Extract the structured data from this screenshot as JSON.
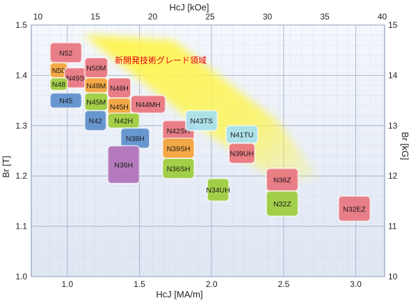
{
  "chart_data": {
    "type": "scatter",
    "title": "",
    "annotation": "新開発技術グレード領域",
    "xlabel_bottom": "HcJ [MA/m]",
    "xlabel_top": "HcJ [kOe]",
    "ylabel_left": "Br [T]",
    "ylabel_right": "Br [kG]",
    "x_range": [
      0.75,
      3.2
    ],
    "y_range": [
      1.0,
      1.5
    ],
    "x_ticks_bottom": [
      1.0,
      1.5,
      2.0,
      2.5,
      3.0
    ],
    "x_tick_labels_bottom": [
      "1.0",
      "1.5",
      "2.0",
      "2.5",
      "3.0"
    ],
    "x_ticks_top_koe": [
      10,
      15,
      20,
      25,
      30,
      35,
      40
    ],
    "x_tick_labels_top": [
      "10",
      "15",
      "20",
      "25",
      "30",
      "35",
      "40"
    ],
    "y_ticks_left": [
      1.0,
      1.1,
      1.2,
      1.3,
      1.4,
      1.5
    ],
    "y_tick_labels_left": [
      "1.0",
      "1.1",
      "1.2",
      "1.3",
      "1.4",
      "1.5"
    ],
    "y_ticks_right_kg": [
      10,
      11,
      12,
      13,
      14,
      15
    ],
    "y_tick_labels_right": [
      "10",
      "11",
      "12",
      "13",
      "14",
      "15"
    ],
    "grid": true,
    "colors": {
      "N": "#e8747e",
      "M": "#f4a236",
      "H": "#9ccc3a",
      "SH": "#5c8ecb",
      "UH": "#b070b8",
      "EH": "#e8747e",
      "accent_text": "#e60012",
      "highlight": "#fff32a",
      "plot_bg": "#eef3fb",
      "grid": "#9aa8c0"
    },
    "grades": [
      {
        "name": "N52",
        "x0": 0.88,
        "x1": 1.1,
        "y0": 1.425,
        "y1": 1.465,
        "color": "#e8747e"
      },
      {
        "name": "N50",
        "x0": 0.88,
        "x1": 1.0,
        "y0": 1.395,
        "y1": 1.425,
        "color": "#f4a236"
      },
      {
        "name": "N49S",
        "x0": 0.98,
        "x1": 1.13,
        "y0": 1.375,
        "y1": 1.415,
        "color": "#e8747e"
      },
      {
        "name": "N50M",
        "x0": 1.12,
        "x1": 1.28,
        "y0": 1.395,
        "y1": 1.435,
        "color": "#e8747e"
      },
      {
        "name": "N48",
        "x0": 0.88,
        "x1": 1.0,
        "y0": 1.37,
        "y1": 1.395,
        "color": "#9ccc3a"
      },
      {
        "name": "N48M",
        "x0": 1.12,
        "x1": 1.28,
        "y0": 1.365,
        "y1": 1.395,
        "color": "#f4a236"
      },
      {
        "name": "N48H",
        "x0": 1.28,
        "x1": 1.44,
        "y0": 1.355,
        "y1": 1.395,
        "color": "#e8747e"
      },
      {
        "name": "N45",
        "x0": 0.88,
        "x1": 1.1,
        "y0": 1.335,
        "y1": 1.365,
        "color": "#5c8ecb"
      },
      {
        "name": "N45M",
        "x0": 1.12,
        "x1": 1.28,
        "y0": 1.33,
        "y1": 1.365,
        "color": "#9ccc3a"
      },
      {
        "name": "N45H",
        "x0": 1.28,
        "x1": 1.44,
        "y0": 1.32,
        "y1": 1.355,
        "color": "#f4a236"
      },
      {
        "name": "N44MH",
        "x0": 1.44,
        "x1": 1.68,
        "y0": 1.325,
        "y1": 1.36,
        "color": "#e8747e"
      },
      {
        "name": "N42",
        "x0": 1.12,
        "x1": 1.27,
        "y0": 1.29,
        "y1": 1.33,
        "color": "#5c8ecb"
      },
      {
        "name": "N42H",
        "x0": 1.28,
        "x1": 1.5,
        "y0": 1.295,
        "y1": 1.325,
        "color": "#9ccc3a"
      },
      {
        "name": "N38H",
        "x0": 1.37,
        "x1": 1.57,
        "y0": 1.255,
        "y1": 1.295,
        "color": "#5c8ecb"
      },
      {
        "name": "N36H",
        "x0": 1.28,
        "x1": 1.5,
        "y0": 1.185,
        "y1": 1.26,
        "color": "#b070b8"
      },
      {
        "name": "N42SH",
        "x0": 1.66,
        "x1": 1.88,
        "y0": 1.27,
        "y1": 1.31,
        "color": "#e8747e"
      },
      {
        "name": "N39SH",
        "x0": 1.66,
        "x1": 1.88,
        "y0": 1.235,
        "y1": 1.275,
        "color": "#f4a236"
      },
      {
        "name": "N36SH",
        "x0": 1.66,
        "x1": 1.88,
        "y0": 1.195,
        "y1": 1.235,
        "color": "#9ccc3a"
      },
      {
        "name": "N43TS",
        "x0": 1.82,
        "x1": 2.04,
        "y0": 1.29,
        "y1": 1.33,
        "color": "#a6dff2"
      },
      {
        "name": "N41TU",
        "x0": 2.1,
        "x1": 2.32,
        "y0": 1.265,
        "y1": 1.3,
        "color": "#a6dff2"
      },
      {
        "name": "N39UH",
        "x0": 2.12,
        "x1": 2.3,
        "y0": 1.225,
        "y1": 1.265,
        "color": "#e8747e"
      },
      {
        "name": "N34UH",
        "x0": 1.97,
        "x1": 2.12,
        "y0": 1.15,
        "y1": 1.195,
        "color": "#9ccc3a"
      },
      {
        "name": "N36Z",
        "x0": 2.38,
        "x1": 2.6,
        "y0": 1.17,
        "y1": 1.215,
        "color": "#e8747e"
      },
      {
        "name": "N32Z",
        "x0": 2.38,
        "x1": 2.6,
        "y0": 1.12,
        "y1": 1.17,
        "color": "#9ccc3a"
      },
      {
        "name": "N32EZ",
        "x0": 2.88,
        "x1": 3.1,
        "y0": 1.11,
        "y1": 1.16,
        "color": "#e8747e"
      }
    ]
  }
}
